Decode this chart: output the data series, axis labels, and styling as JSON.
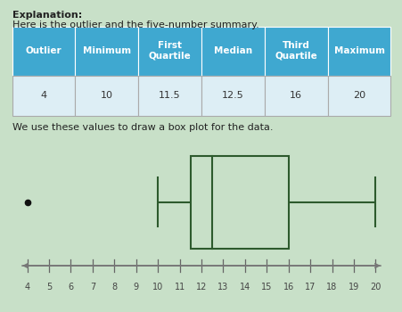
{
  "background_color": "#c8e0c8",
  "explanation_bold": "Explanation:",
  "subtitle_text": "Here is the outlier and the five-number summary.",
  "below_table_text": "We use these values to draw a box plot for the data.",
  "table_headers": [
    "Outlier",
    "Minimum",
    "First\nQuartile",
    "Median",
    "Third\nQuartile",
    "Maximum"
  ],
  "table_values": [
    "4",
    "10",
    "11.5",
    "12.5",
    "16",
    "20"
  ],
  "header_bg": "#3fa8d0",
  "row_bg": "#ddeef5",
  "header_text_color": "#ffffff",
  "row_text_color": "#333333",
  "outlier": 4,
  "minimum": 10,
  "q1": 11.5,
  "median": 12.5,
  "q3": 16,
  "maximum": 20,
  "axis_min": 4,
  "axis_max": 20,
  "axis_ticks": [
    4,
    5,
    6,
    7,
    8,
    9,
    10,
    11,
    12,
    13,
    14,
    15,
    16,
    17,
    18,
    19,
    20
  ],
  "box_line_color": "#2d5a2d",
  "outlier_color": "#111111",
  "arrow_color": "#777777",
  "tick_color": "#666666",
  "tick_label_color": "#444444"
}
